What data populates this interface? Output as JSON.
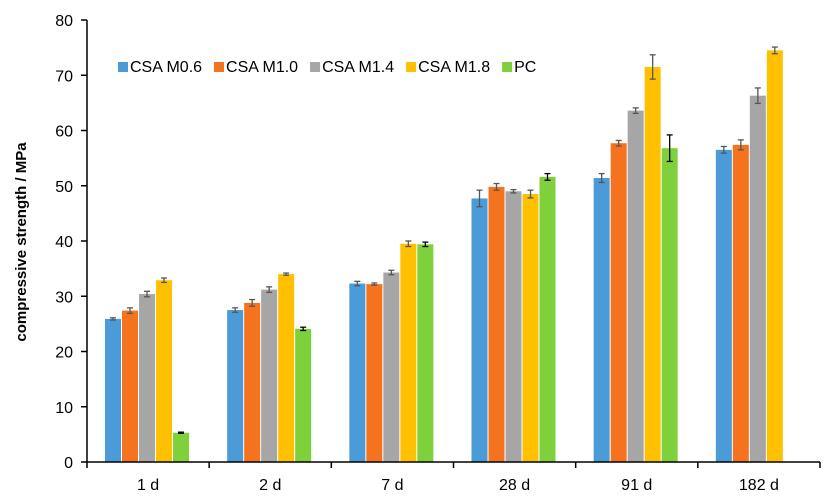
{
  "chart_data": {
    "type": "bar",
    "title": "",
    "xlabel": "",
    "ylabel": "compressive strength / MPa",
    "ylim": [
      0,
      80
    ],
    "yticks": [
      0,
      10,
      20,
      30,
      40,
      50,
      60,
      70,
      80
    ],
    "grid": false,
    "legend_position": "top-left",
    "categories": [
      "1 d",
      "2 d",
      "7 d",
      "28 d",
      "91 d",
      "182 d"
    ],
    "series": [
      {
        "name": "CSA M0.6",
        "color": "#4a9bd8",
        "values": [
          25.9,
          27.5,
          32.3,
          47.7,
          51.4,
          56.5
        ],
        "errors": [
          0.2,
          0.4,
          0.4,
          1.5,
          0.8,
          0.6
        ]
      },
      {
        "name": "CSA M1.0",
        "color": "#f5731f",
        "values": [
          27.4,
          28.8,
          32.2,
          49.8,
          57.7,
          57.4
        ],
        "errors": [
          0.5,
          0.6,
          0.2,
          0.6,
          0.5,
          0.9
        ]
      },
      {
        "name": "CSA M1.4",
        "color": "#a6a6a6",
        "values": [
          30.4,
          31.2,
          34.3,
          49.0,
          63.6,
          66.3
        ],
        "errors": [
          0.5,
          0.5,
          0.4,
          0.3,
          0.5,
          1.4
        ]
      },
      {
        "name": "CSA M1.8",
        "color": "#ffc000",
        "values": [
          32.9,
          34.0,
          39.5,
          48.5,
          71.5,
          74.5
        ],
        "errors": [
          0.4,
          0.2,
          0.5,
          0.7,
          2.2,
          0.6
        ]
      },
      {
        "name": "PC",
        "color": "#7ed13a",
        "values": [
          5.3,
          24.1,
          39.4,
          51.6,
          56.8,
          null
        ],
        "errors": [
          0.1,
          0.3,
          0.4,
          0.6,
          2.4,
          null
        ]
      }
    ]
  }
}
